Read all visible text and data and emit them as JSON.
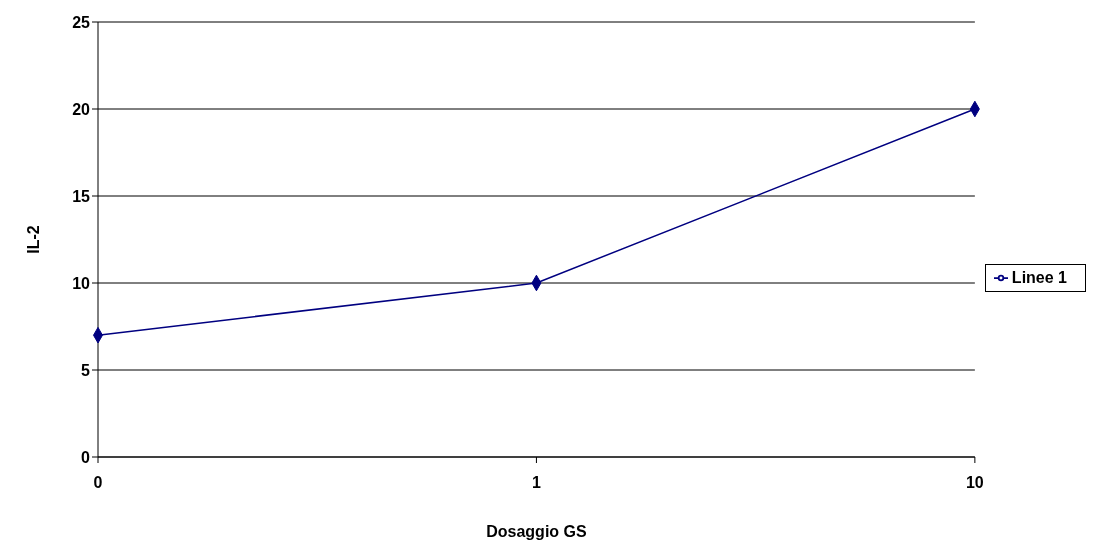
{
  "chart_data": {
    "type": "line",
    "xlabel": "Dosaggio GS",
    "ylabel": "IL-2",
    "categories": [
      "0",
      "1",
      "10"
    ],
    "series": [
      {
        "name": "Linee 1",
        "color": "#000080",
        "values": [
          7,
          10,
          20
        ]
      }
    ],
    "ylim": [
      0,
      25
    ],
    "yticks": [
      0,
      5,
      10,
      15,
      20,
      25
    ],
    "grid": "y",
    "legend": "right",
    "marker": "diamond",
    "line_style": "solid"
  }
}
